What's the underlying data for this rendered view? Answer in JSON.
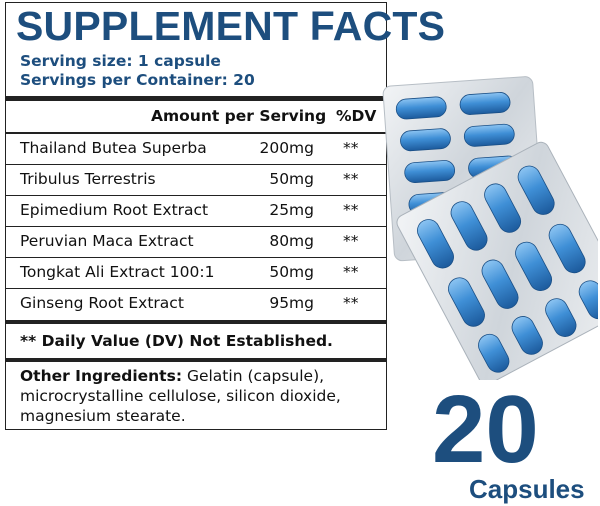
{
  "facts": {
    "title": "SUPPLEMENT FACTS",
    "serving_size": "Serving size: 1 capsule",
    "servings_per_container": "Servings per Container: 20",
    "header_amount": "Amount per Serving",
    "header_dv": "%DV",
    "ingredients": [
      {
        "name": "Thailand Butea Superba",
        "amount": "200mg",
        "dv": "**"
      },
      {
        "name": "Tribulus Terrestris",
        "amount": "50mg",
        "dv": "**"
      },
      {
        "name": "Epimedium Root Extract",
        "amount": "25mg",
        "dv": "**"
      },
      {
        "name": "Peruvian Maca Extract",
        "amount": "80mg",
        "dv": "**"
      },
      {
        "name": "Tongkat Ali Extract 100:1",
        "amount": "50mg",
        "dv": "**"
      },
      {
        "name": "Ginseng Root Extract",
        "amount": "95mg",
        "dv": "**"
      }
    ],
    "dv_note": "** Daily Value (DV) Not Established.",
    "other_label": "Other Ingredients:",
    "other_text": " Gelatin (capsule), microcrystalline cellulose, silicon dioxide, magnesium stearate."
  },
  "badge": {
    "count": "20",
    "unit": "Capsules"
  },
  "colors": {
    "brand_blue": "#1d4e7e",
    "capsule_blue": "#3f8fd6"
  },
  "image": {
    "icon": "capsule-blister-pack-icon"
  }
}
